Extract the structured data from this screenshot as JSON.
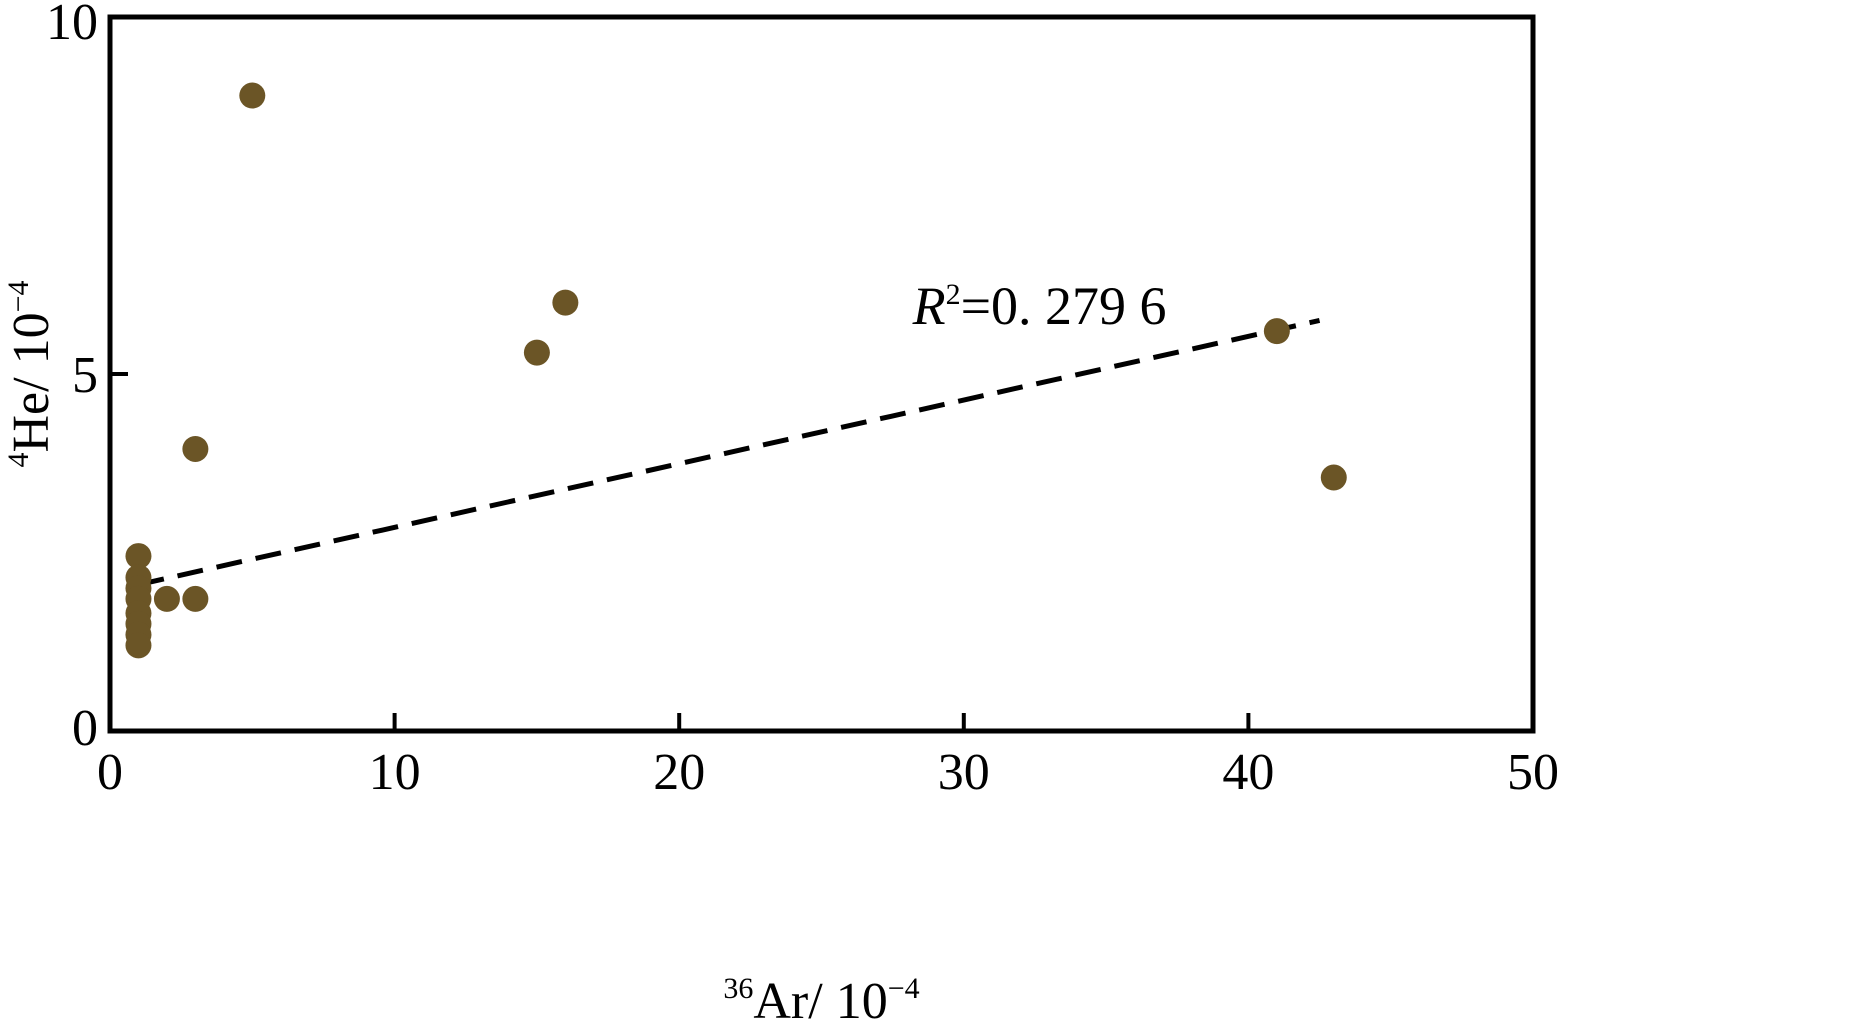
{
  "chart_data": {
    "type": "scatter",
    "title": "",
    "xlabel": {
      "sup": "36",
      "base": "Ar/ 10",
      "exp": "−4"
    },
    "ylabel": {
      "sup": "4",
      "base": "He/ 10",
      "exp": "−4"
    },
    "xlim": [
      0,
      50
    ],
    "ylim": [
      0,
      10
    ],
    "x_ticks": [
      0,
      10,
      20,
      30,
      40,
      50
    ],
    "y_ticks": [
      0,
      5,
      10
    ],
    "grid": false,
    "legend": "none",
    "point_color": "#6b5526",
    "series": [
      {
        "points": [
          {
            "x": 1.0,
            "y": 2.45
          },
          {
            "x": 1.0,
            "y": 2.15
          },
          {
            "x": 1.0,
            "y": 2.0
          },
          {
            "x": 1.0,
            "y": 1.85
          },
          {
            "x": 1.0,
            "y": 1.65
          },
          {
            "x": 1.0,
            "y": 1.5
          },
          {
            "x": 1.0,
            "y": 1.35
          },
          {
            "x": 1.0,
            "y": 1.2
          },
          {
            "x": 2.0,
            "y": 1.85
          },
          {
            "x": 3.0,
            "y": 1.85
          },
          {
            "x": 3.0,
            "y": 3.95
          },
          {
            "x": 5.0,
            "y": 8.9
          },
          {
            "x": 15.0,
            "y": 5.3
          },
          {
            "x": 16.0,
            "y": 6.0
          },
          {
            "x": 41.0,
            "y": 5.6
          },
          {
            "x": 43.0,
            "y": 3.55
          }
        ]
      }
    ],
    "trendline": {
      "style": "dashed",
      "color": "#000000",
      "start": {
        "x": 1.0,
        "y": 2.05
      },
      "end": {
        "x": 42.5,
        "y": 5.75
      },
      "label": {
        "sup": "2",
        "var": "R",
        "value": "=0. 279 6"
      }
    }
  }
}
